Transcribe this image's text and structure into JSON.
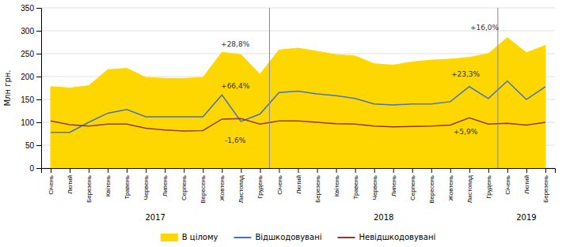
{
  "chart_data": {
    "type": "line",
    "ylabel": "Млн грн.",
    "categories": [
      "Січень",
      "Лютий",
      "Березень",
      "Квітень",
      "Травень",
      "Червень",
      "Липень",
      "Серпень",
      "Вересень",
      "Жовтень",
      "Листопад",
      "Грудень",
      "Січень",
      "Лютий",
      "Березень",
      "Квітень",
      "Травень",
      "Червень",
      "Липень",
      "Серпень",
      "Вересень",
      "Жовтень",
      "Листопад",
      "Грудень",
      "Січень",
      "Лютий",
      "Березень"
    ],
    "x_groups": [
      {
        "label": "2017",
        "count": 12
      },
      {
        "label": "2018",
        "count": 12
      },
      {
        "label": "2019",
        "count": 3
      }
    ],
    "series": [
      {
        "name": "В цілому",
        "type": "area",
        "color": "#FFD700",
        "values": [
          178,
          175,
          180,
          215,
          218,
          198,
          196,
          196,
          198,
          253,
          248,
          205,
          258,
          262,
          255,
          248,
          245,
          228,
          225,
          232,
          236,
          238,
          242,
          250,
          285,
          252,
          268
        ]
      },
      {
        "name": "Відшкодовувані",
        "type": "line",
        "color": "#4472C4",
        "values": [
          78,
          78,
          100,
          120,
          128,
          112,
          112,
          112,
          112,
          160,
          102,
          118,
          165,
          168,
          162,
          158,
          152,
          140,
          138,
          140,
          140,
          145,
          178,
          152,
          190,
          150,
          178
        ]
      },
      {
        "name": "Невідшкодовувані",
        "type": "line",
        "color": "#943634",
        "values": [
          103,
          95,
          92,
          96,
          96,
          87,
          83,
          81,
          82,
          107,
          108,
          96,
          103,
          103,
          100,
          97,
          96,
          92,
          90,
          91,
          92,
          94,
          110,
          96,
          98,
          94,
          100
        ]
      }
    ],
    "annotations": [
      {
        "text": "+28,8%",
        "x": 9.7,
        "y": 262
      },
      {
        "text": "+66,4%",
        "x": 9.7,
        "y": 170
      },
      {
        "text": "-1,6%",
        "x": 9.7,
        "y": 52
      },
      {
        "text": "+16,0%",
        "x": 22.8,
        "y": 298
      },
      {
        "text": "+23,3%",
        "x": 21.8,
        "y": 196
      },
      {
        "text": "+5,9%",
        "x": 21.8,
        "y": 70
      }
    ],
    "ylim": [
      0,
      350
    ],
    "yticks": [
      0,
      50,
      100,
      150,
      200,
      250,
      300,
      350
    ],
    "grid": true,
    "legend": "bottom"
  }
}
